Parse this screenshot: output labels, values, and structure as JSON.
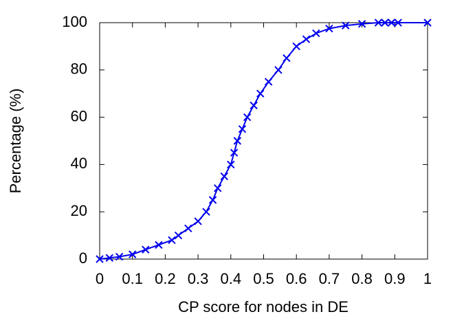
{
  "chart_data": {
    "type": "line",
    "x_label": "CP score for nodes in DE",
    "y_label": "Percentage (%)",
    "x": [
      0,
      0.03,
      0.06,
      0.1,
      0.14,
      0.18,
      0.22,
      0.24,
      0.27,
      0.3,
      0.325,
      0.345,
      0.36,
      0.38,
      0.4,
      0.41,
      0.42,
      0.435,
      0.45,
      0.47,
      0.49,
      0.515,
      0.545,
      0.57,
      0.6,
      0.63,
      0.66,
      0.7,
      0.75,
      0.8,
      0.85,
      0.87,
      0.89,
      0.91,
      1
    ],
    "values": [
      0,
      0.5,
      1,
      2,
      4,
      6,
      8,
      10,
      13,
      16,
      20,
      25,
      30,
      35,
      40,
      45,
      50,
      55,
      60,
      65,
      70,
      75,
      80,
      85,
      90,
      93,
      95.5,
      97.5,
      98.8,
      99.5,
      100,
      100,
      100,
      100,
      100
    ],
    "color": "#0000ee",
    "marker": "x",
    "xlim": [
      0,
      1
    ],
    "xticks": [
      0,
      0.1,
      0.2,
      0.3,
      0.4,
      0.5,
      0.6,
      0.7,
      0.8,
      0.9,
      1
    ],
    "ylim": [
      0,
      100
    ],
    "yticks": [
      0,
      20,
      40,
      60,
      80,
      100
    ],
    "grid": false
  }
}
